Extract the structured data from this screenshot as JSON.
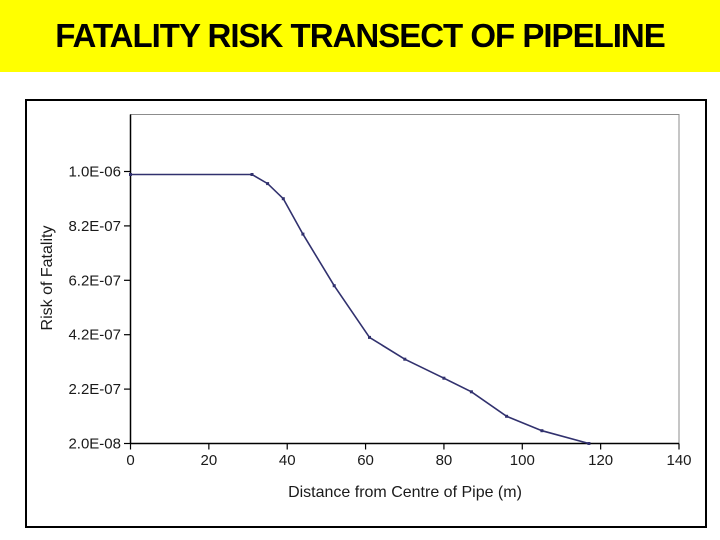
{
  "slide": {
    "title": "FATALITY RISK TRANSECT OF PIPELINE"
  },
  "colors": {
    "banner_background": "#FFFF00",
    "title_text": "#000000",
    "page_background": "#FFFFFF",
    "chart_frame_border": "#000000",
    "plot_area_border": "#8C8C8C",
    "axis": "#000000",
    "series_line": "#31316E"
  },
  "chart_data": {
    "type": "line",
    "title": "",
    "xlabel": "Distance from Centre of Pipe (m)",
    "ylabel": "Risk of Fatality",
    "x_ticks": [
      0,
      20,
      40,
      60,
      80,
      100,
      120,
      140
    ],
    "y_tick_labels": [
      "1.0E-06",
      "8.2E-07",
      "6.2E-07",
      "4.2E-07",
      "2.2E-07",
      "2.0E-08"
    ],
    "y_tick_values": [
      1e-06,
      8.2e-07,
      6.2e-07,
      4.2e-07,
      2.2e-07,
      2e-08
    ],
    "xlim": [
      0,
      140
    ],
    "grid": false,
    "legend": "none",
    "series": [
      {
        "name": "Fatality risk transect",
        "points": [
          [
            0,
            9.9e-07
          ],
          [
            31,
            9.9e-07
          ],
          [
            35,
            9.6e-07
          ],
          [
            39,
            9.1e-07
          ],
          [
            44,
            7.9e-07
          ],
          [
            52,
            6e-07
          ],
          [
            61,
            4.1e-07
          ],
          [
            70,
            3.3e-07
          ],
          [
            80,
            2.6e-07
          ],
          [
            87,
            2.1e-07
          ],
          [
            96,
            1.2e-07
          ],
          [
            105,
            6.7e-08
          ],
          [
            117,
            2e-08
          ]
        ]
      }
    ]
  }
}
